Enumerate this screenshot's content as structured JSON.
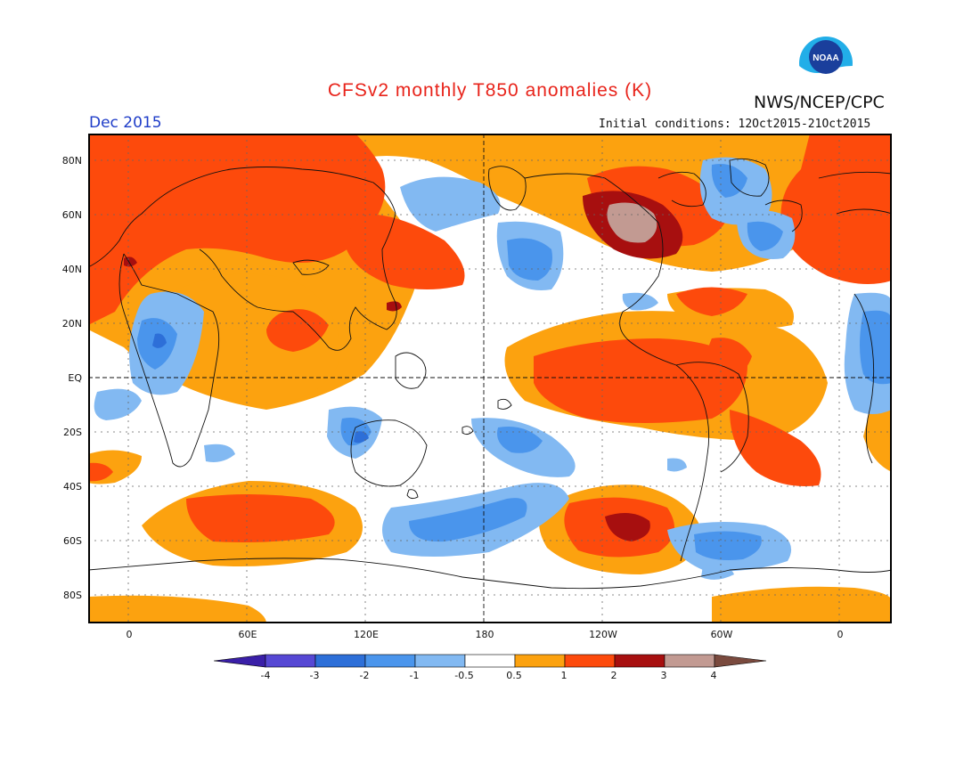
{
  "title": "CFSv2 monthly T850 anomalies (K)",
  "agency": "NWS/NCEP/CPC",
  "logo_text": "NOAA",
  "valid_month": "Dec 2015",
  "initial_conditions": "Initial conditions: 12Oct2015-21Oct2015",
  "lat_labels": [
    "80N",
    "60N",
    "40N",
    "20N",
    "EQ",
    "20S",
    "40S",
    "60S",
    "80S"
  ],
  "lon_labels": [
    "0",
    "60E",
    "120E",
    "180",
    "120W",
    "60W",
    "0"
  ],
  "colorbar": {
    "tick_labels": [
      "-4",
      "-3",
      "-2",
      "-1",
      "-0.5",
      "0.5",
      "1",
      "2",
      "3",
      "4"
    ],
    "colors": [
      "#3a1fa8",
      "#5648d4",
      "#2d6fd8",
      "#4a95ec",
      "#82b9f2",
      "#ffffff",
      "#fca20f",
      "#fd4a0c",
      "#a70f0f",
      "#c29a92",
      "#7a4a3e"
    ]
  },
  "anomaly_colors": {
    "warm_1": "#fca20f",
    "warm_2": "#fd4a0c",
    "warm_3": "#a70f0f",
    "warm_4": "#c29a92",
    "cool_1": "#82b9f2",
    "cool_2": "#4a95ec",
    "cool_3": "#2d6fd8"
  }
}
